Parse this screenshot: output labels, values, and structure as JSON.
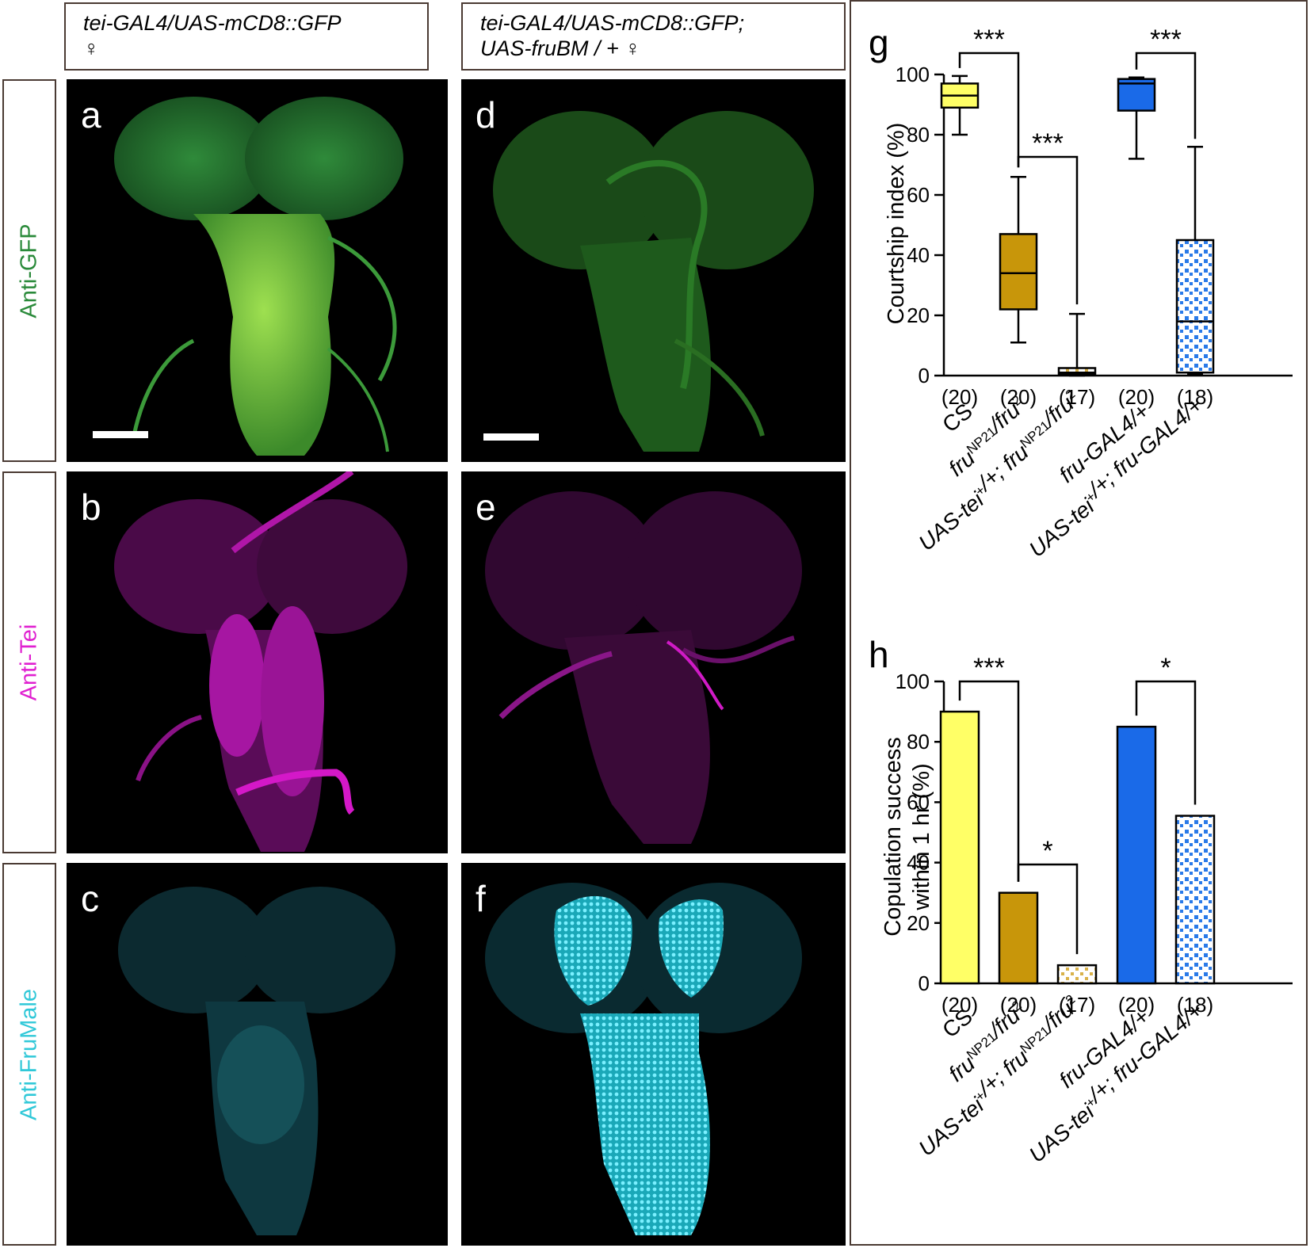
{
  "headers": {
    "left_line1": "tei-GAL4/UAS-mCD8::GFP",
    "left_line2": "♀",
    "right_line1": "tei-GAL4/UAS-mCD8::GFP;",
    "right_line2": "UAS-fruBM / + ♀"
  },
  "row_labels": {
    "gfp": "Anti-GFP",
    "tei": "Anti-Tei",
    "fru": "Anti-FruMale"
  },
  "panels": {
    "a": "a",
    "b": "b",
    "c": "c",
    "d": "d",
    "e": "e",
    "f": "f"
  },
  "colors": {
    "gfp": "#2a8a3a",
    "tei": "#e020d0",
    "fru": "#30c8d8",
    "cs_yellow": "#ffff66",
    "fru_mut_gold": "#c8960a",
    "rescue_tan": "#d9b24a",
    "gal4_blue": "#1a6ae8",
    "rescue_checker": "#2a7ae8"
  },
  "chart_data": [
    {
      "panel": "g",
      "type": "box",
      "ylabel": "Courtship index (%)",
      "ylim": [
        0,
        100
      ],
      "yticks": [
        0,
        20,
        40,
        60,
        80,
        100
      ],
      "categories": [
        "CS",
        "fruNP21/fru2",
        "UAS-tei+/+; fruNP21/fru2",
        "fru-GAL4/+",
        "UAS-tei+/+; fru-GAL4/+"
      ],
      "n_labels": [
        "(20)",
        "(20)",
        "(17)",
        "(20)",
        "(18)"
      ],
      "boxes": [
        {
          "min": 80,
          "q1": 89,
          "median": 93,
          "q3": 97,
          "max": 99.5
        },
        {
          "min": 11,
          "q1": 22,
          "median": 34,
          "q3": 47,
          "max": 66
        },
        {
          "min": 0,
          "q1": 0.5,
          "median": 1,
          "q3": 2.5,
          "max": 20.5
        },
        {
          "min": 72,
          "q1": 88,
          "median": 97,
          "q3": 98.5,
          "max": 99
        },
        {
          "min": 0.5,
          "q1": 1,
          "median": 18,
          "q3": 45,
          "max": 76
        }
      ],
      "significance": [
        {
          "from": 0,
          "to": 1,
          "label": "***"
        },
        {
          "from": 1,
          "to": 2,
          "label": "***"
        },
        {
          "from": 3,
          "to": 4,
          "label": "***"
        }
      ]
    },
    {
      "panel": "h",
      "type": "bar",
      "ylabel_line1": "Copulation success",
      "ylabel_line2": "within 1 hr (%)",
      "ylim": [
        0,
        100
      ],
      "yticks": [
        0,
        20,
        40,
        60,
        80,
        100
      ],
      "categories": [
        "CS",
        "fruNP21/fru2",
        "UAS-tei+/+; fruNP21/fru2",
        "fru-GAL4/+",
        "UAS-tei+/+; fru-GAL4/+"
      ],
      "n_labels": [
        "(20)",
        "(20)",
        "(17)",
        "(20)",
        "(18)"
      ],
      "values": [
        90,
        30,
        6,
        85,
        55.5
      ],
      "significance": [
        {
          "from": 0,
          "to": 1,
          "label": "***"
        },
        {
          "from": 1,
          "to": 2,
          "label": "*"
        },
        {
          "from": 3,
          "to": 4,
          "label": "*"
        }
      ]
    }
  ],
  "chart_letters": {
    "g": "g",
    "h": "h"
  },
  "xtick_text": {
    "cs": "CS",
    "fru_base": "fru",
    "np21": "NP21",
    "slash_fru": "/fru",
    "two": "2",
    "uas_tei": "UAS-tei",
    "plus": "+",
    "slash_plus_semi": "/+; ",
    "fru_gal4": "fru-GAL4/+"
  }
}
